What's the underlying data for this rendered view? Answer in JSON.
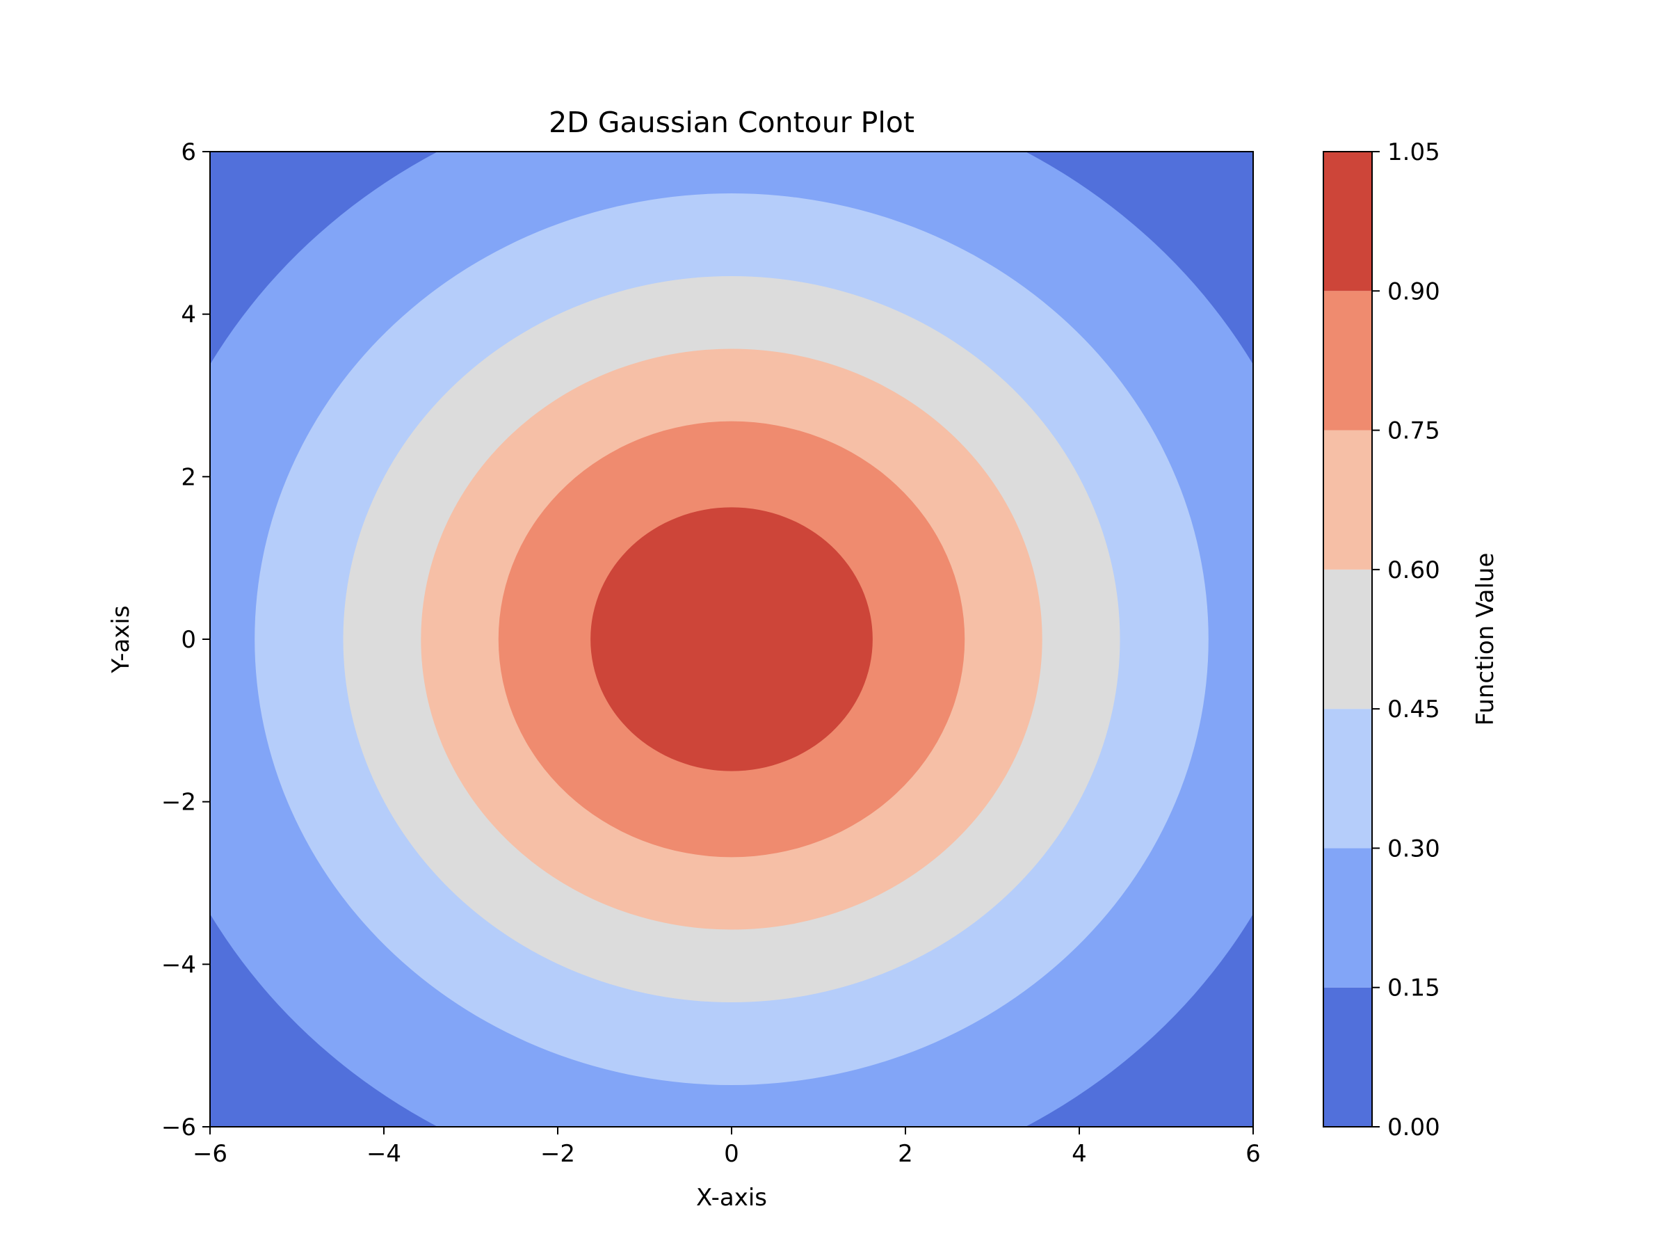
{
  "chart_data": {
    "type": "contour",
    "title": "2D Gaussian Contour Plot",
    "xlabel": "X-axis",
    "ylabel": "Y-axis",
    "xlim": [
      -6,
      6
    ],
    "ylim": [
      -6,
      6
    ],
    "x_ticks": [
      -6,
      -4,
      -2,
      0,
      2,
      4,
      6
    ],
    "y_ticks": [
      -6,
      -4,
      -2,
      0,
      2,
      4,
      6
    ],
    "x_tick_labels": [
      "−6",
      "−4",
      "−2",
      "0",
      "2",
      "4",
      "6"
    ],
    "y_tick_labels": [
      "−6",
      "−4",
      "−2",
      "0",
      "2",
      "4",
      "6"
    ],
    "function": "exp(-(x^2 + y^2) / 25)",
    "grid": false,
    "colorbar": {
      "label": "Function Value",
      "levels": [
        0.0,
        0.15,
        0.3,
        0.45,
        0.6,
        0.75,
        0.9,
        1.05
      ],
      "tick_labels": [
        "0.00",
        "0.15",
        "0.30",
        "0.45",
        "0.60",
        "0.75",
        "0.90",
        "1.05"
      ],
      "colors": [
        "#5170db",
        "#82a5f7",
        "#b5cdfa",
        "#dcdcdc",
        "#f6bfa6",
        "#ef8b6f",
        "#cd4539"
      ]
    }
  }
}
